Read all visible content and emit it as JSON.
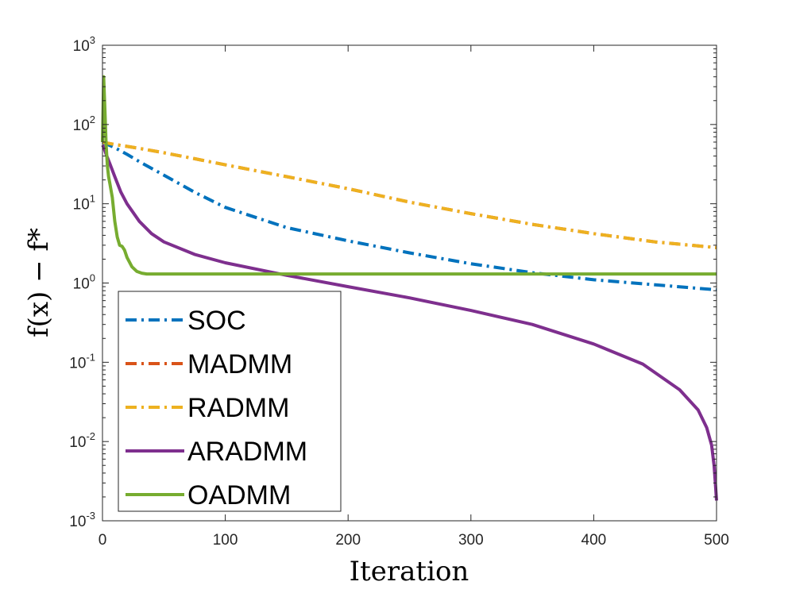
{
  "chart_data": {
    "type": "line",
    "title": "",
    "xlabel": "Iteration",
    "ylabel": "f(x) − f*",
    "y_scale": "log",
    "xlim": [
      0,
      500
    ],
    "ylim": [
      0.001,
      1000
    ],
    "x_ticks": [
      0,
      100,
      200,
      300,
      400,
      500
    ],
    "y_ticks": [
      {
        "value": 0.001,
        "base": "10",
        "exp": "-3"
      },
      {
        "value": 0.01,
        "base": "10",
        "exp": "-2"
      },
      {
        "value": 0.1,
        "base": "10",
        "exp": "-1"
      },
      {
        "value": 1,
        "base": "10",
        "exp": "0"
      },
      {
        "value": 10,
        "base": "10",
        "exp": "1"
      },
      {
        "value": 100,
        "base": "10",
        "exp": "2"
      },
      {
        "value": 1000,
        "base": "10",
        "exp": "3"
      }
    ],
    "grid": false,
    "legend_position": "bottom-left",
    "series": [
      {
        "name": "SOC",
        "color": "#0072BD",
        "style": "dashdot",
        "x": [
          0,
          2,
          10,
          20,
          30,
          50,
          75,
          100,
          150,
          200,
          250,
          300,
          350,
          400,
          450,
          500
        ],
        "y": [
          60,
          58,
          51,
          42,
          34,
          23,
          14,
          9,
          5,
          3.4,
          2.4,
          1.75,
          1.35,
          1.1,
          0.95,
          0.82
        ]
      },
      {
        "name": "MADMM",
        "color": "#D95319",
        "style": "dashdot",
        "x": [
          0,
          2,
          10,
          20,
          30,
          50,
          75,
          100,
          150,
          200,
          250,
          300,
          350,
          400,
          450,
          500
        ],
        "y": [
          60,
          59,
          56,
          53,
          50,
          44,
          37,
          31,
          22,
          15.5,
          10.5,
          7.5,
          5.5,
          4.2,
          3.3,
          2.8
        ]
      },
      {
        "name": "RADMM",
        "color": "#EDB120",
        "style": "dashdot",
        "x": [
          0,
          2,
          10,
          20,
          30,
          50,
          75,
          100,
          150,
          200,
          250,
          300,
          350,
          400,
          450,
          500
        ],
        "y": [
          60,
          59,
          56,
          53,
          50,
          44,
          37,
          31,
          22,
          15.5,
          10.5,
          7.5,
          5.5,
          4.2,
          3.3,
          2.8
        ]
      },
      {
        "name": "ARADMM",
        "color": "#7E2F8E",
        "style": "solid",
        "x": [
          0,
          1,
          3,
          6,
          10,
          15,
          20,
          30,
          40,
          50,
          75,
          100,
          150,
          200,
          250,
          300,
          350,
          400,
          440,
          470,
          485,
          492,
          496,
          498,
          499,
          500
        ],
        "y": [
          55,
          52,
          42,
          32,
          22,
          14,
          10,
          6,
          4.2,
          3.3,
          2.3,
          1.8,
          1.25,
          0.9,
          0.65,
          0.45,
          0.3,
          0.17,
          0.095,
          0.045,
          0.025,
          0.015,
          0.009,
          0.005,
          0.003,
          0.0018
        ]
      },
      {
        "name": "OADMM",
        "color": "#77AC30",
        "style": "solid",
        "x": [
          0,
          1,
          2,
          3,
          4,
          5,
          6,
          8,
          10,
          12,
          14,
          16,
          18,
          20,
          24,
          28,
          32,
          36,
          40,
          60,
          100,
          200,
          300,
          400,
          500
        ],
        "y": [
          60,
          400,
          150,
          55,
          30,
          22,
          18,
          12,
          6,
          3.8,
          3.0,
          2.9,
          2.6,
          2.1,
          1.6,
          1.4,
          1.33,
          1.3,
          1.3,
          1.3,
          1.3,
          1.3,
          1.3,
          1.3,
          1.3
        ]
      }
    ]
  }
}
